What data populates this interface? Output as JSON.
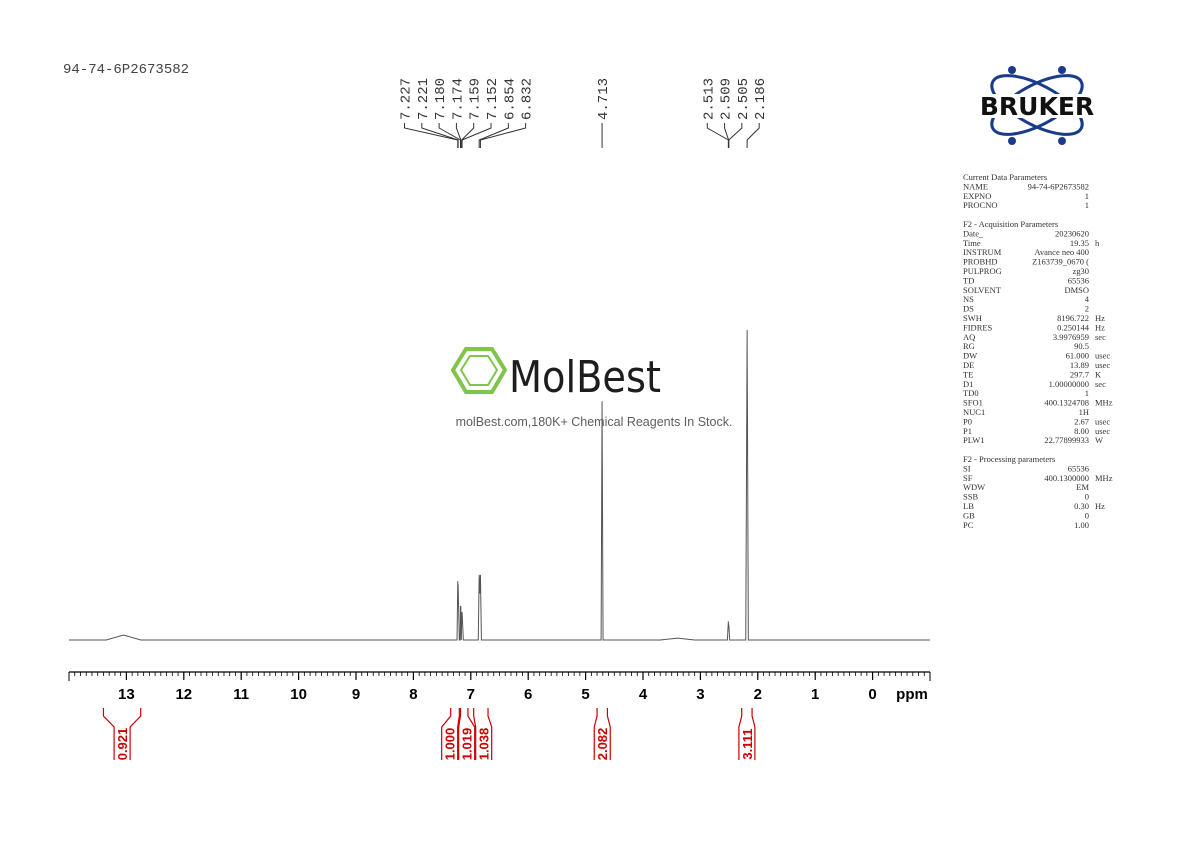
{
  "chart_data": {
    "type": "line",
    "title": "94-74-6P2673582",
    "xlabel": "ppm",
    "xlim": [
      14,
      -1
    ],
    "xticks": [
      13,
      12,
      11,
      10,
      9,
      8,
      7,
      6,
      5,
      4,
      3,
      2,
      1,
      0
    ],
    "minor_divisions": 10,
    "ylim": [
      0,
      100
    ],
    "series": [
      {
        "color": "#555555",
        "x": [
          14,
          13.35,
          13.05,
          12.75,
          7.3,
          7.24,
          7.227,
          7.224,
          7.221,
          7.2,
          7.185,
          7.18,
          7.177,
          7.174,
          7.165,
          7.159,
          7.155,
          7.152,
          7.13,
          6.87,
          6.854,
          6.843,
          6.832,
          6.815,
          4.73,
          4.713,
          4.696,
          3.7,
          3.4,
          3.1,
          2.53,
          2.513,
          2.509,
          2.505,
          2.49,
          2.21,
          2.186,
          2.165,
          -1
        ],
        "values": [
          0,
          0,
          1.6,
          0,
          0,
          0,
          19,
          12,
          18,
          0,
          0,
          11,
          7,
          11,
          0,
          9,
          6,
          9,
          0,
          0,
          21,
          15,
          21,
          0,
          0,
          77,
          0,
          0,
          0.6,
          0,
          0,
          6,
          4,
          5,
          0,
          0,
          100,
          0,
          0
        ]
      }
    ],
    "peaks": [
      7.227,
      7.221,
      {
        "value": 7.18,
        "label": "7.180"
      },
      7.174,
      7.159,
      7.152,
      6.854,
      6.832,
      4.713,
      2.513,
      2.509,
      2.505,
      2.186
    ],
    "integrals": {
      "color": "#cc0000",
      "values": [
        0.921,
        1,
        1.019,
        1.038,
        2.082,
        3.111
      ],
      "value_labels": [
        "0.921",
        "1.000",
        "1.019",
        "1.038",
        "2.082",
        "3.111"
      ],
      "ranges": [
        [
          13.4,
          12.75
        ],
        [
          7.35,
          7.2
        ],
        [
          7.18,
          7.05
        ],
        [
          6.95,
          6.7
        ],
        [
          4.8,
          4.62
        ],
        [
          2.28,
          2.1
        ]
      ]
    }
  },
  "watermark": {
    "brand": "MolBest",
    "text": "molBest.com,180K+ Chemical Reagents In Stock."
  },
  "logo": "BRUKER",
  "parameters": [
    {
      "title": "Current Data Parameters",
      "rows": [
        [
          "NAME",
          "94-74-6P2673582"
        ],
        [
          "EXPNO",
          "1"
        ],
        [
          "PROCNO",
          "1"
        ]
      ]
    },
    {
      "title": "F2 - Acquisition Parameters",
      "rows": [
        [
          "Date_",
          "20230620"
        ],
        [
          "Time",
          "19.35",
          "h"
        ],
        [
          "INSTRUM",
          "Avance neo 400"
        ],
        [
          "PROBHD",
          "Z163739_0670 ("
        ],
        [
          "PULPROG",
          "zg30"
        ],
        [
          "TD",
          "65536"
        ],
        [
          "SOLVENT",
          "DMSO"
        ],
        [
          "NS",
          "4"
        ],
        [
          "DS",
          "2"
        ],
        [
          "SWH",
          "8196.722",
          "Hz"
        ],
        [
          "FIDRES",
          "0.250144",
          "Hz"
        ],
        [
          "AQ",
          "3.9976959",
          "sec"
        ],
        [
          "RG",
          "90.5"
        ],
        [
          "DW",
          "61.000",
          "usec"
        ],
        [
          "DE",
          "13.89",
          "usec"
        ],
        [
          "TE",
          "297.7",
          "K"
        ],
        [
          "D1",
          "1.00000000",
          "sec"
        ],
        [
          "TD0",
          "1"
        ],
        [
          "SFO1",
          "400.1324708",
          "MHz"
        ],
        [
          "NUC1",
          "1H"
        ],
        [
          "P0",
          "2.67",
          "usec"
        ],
        [
          "P1",
          "8.00",
          "usec"
        ],
        [
          "PLW1",
          "22.77899933",
          "W"
        ]
      ]
    },
    {
      "title": "F2 - Processing parameters",
      "rows": [
        [
          "SI",
          "65536"
        ],
        [
          "SF",
          "400.1300000",
          "MHz"
        ],
        [
          "WDW",
          "EM"
        ],
        [
          "SSB",
          "0"
        ],
        [
          "LB",
          "0.30",
          "Hz"
        ],
        [
          "GB",
          "0"
        ],
        [
          "PC",
          "1.00"
        ]
      ]
    }
  ]
}
